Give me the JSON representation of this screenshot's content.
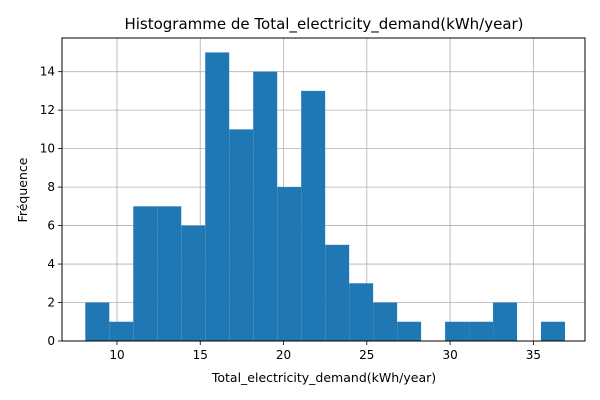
{
  "chart_data": {
    "type": "bar",
    "title": "Histogramme de Total_electricity_demand(kWh/year)",
    "xlabel": "Total_electricity_demand(kWh/year)",
    "ylabel": "Fréquence",
    "xlim": [
      6.7,
      38.1
    ],
    "ylim": [
      0,
      15.75
    ],
    "xticks": [
      10,
      15,
      20,
      25,
      30,
      35
    ],
    "yticks": [
      0,
      2,
      4,
      6,
      8,
      10,
      12,
      14
    ],
    "grid": true,
    "bar_color": "#1f77b4",
    "bin_edges": [
      8.1,
      9.54,
      10.98,
      12.42,
      13.86,
      15.3,
      16.74,
      18.18,
      19.62,
      21.06,
      22.5,
      23.94,
      25.38,
      26.82,
      28.26,
      29.7,
      31.14,
      32.58,
      34.02,
      35.46,
      36.9
    ],
    "values": [
      2,
      1,
      7,
      7,
      6,
      15,
      11,
      14,
      8,
      13,
      5,
      3,
      2,
      1,
      0,
      1,
      1,
      2,
      0,
      1
    ]
  }
}
